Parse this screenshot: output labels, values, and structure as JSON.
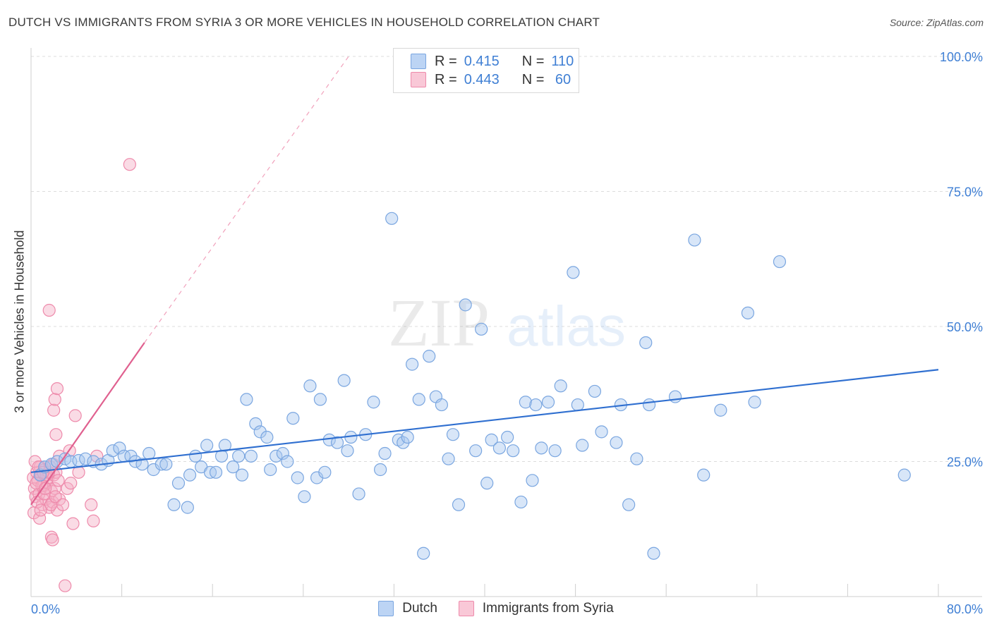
{
  "title": "DUTCH VS IMMIGRANTS FROM SYRIA 3 OR MORE VEHICLES IN HOUSEHOLD CORRELATION CHART",
  "source": "Source: ZipAtlas.com",
  "watermark": {
    "zip": "ZIP",
    "atlas": "atlas"
  },
  "legend": {
    "dutch": {
      "r_label": "R =",
      "r_value": "0.415",
      "n_label": "N =",
      "n_value": "110",
      "color": "#a9c7f0"
    },
    "syria": {
      "r_label": "R =",
      "r_value": "0.443",
      "n_label": "N =",
      "n_value": " 60",
      "color": "#f5b0c6"
    }
  },
  "bottom_legend": {
    "dutch": "Dutch",
    "syria": "Immigrants from Syria"
  },
  "chart_data": {
    "type": "scatter",
    "xlabel": "",
    "ylabel": "3 or more Vehicles in Household",
    "xlim": [
      0,
      80
    ],
    "ylim": [
      0,
      100
    ],
    "x_tick_labels": [
      "0.0%",
      "80.0%"
    ],
    "y_tick_labels": [
      "100.0%",
      "75.0%",
      "50.0%",
      "25.0%"
    ],
    "y_ticks": [
      100,
      75,
      50,
      25
    ],
    "colors": {
      "dutch_fill": "#a9c7f0",
      "dutch_stroke": "#7aa6e0",
      "dutch_line": "#2f6fd0",
      "syria_fill": "#f5b0c6",
      "syria_stroke": "#ee8aab",
      "syria_line": "#e0608f",
      "axis_text": "#3f7fd4"
    },
    "series": [
      {
        "name": "Dutch",
        "trend": {
          "x0": 0,
          "y0": 23.0,
          "x1": 80,
          "y1": 42.0
        },
        "points": [
          [
            0.8,
            22.5
          ],
          [
            1.2,
            24
          ],
          [
            1.8,
            24.5
          ],
          [
            2.3,
            25
          ],
          [
            3,
            25.5
          ],
          [
            3.5,
            25
          ],
          [
            4.2,
            25.2
          ],
          [
            4.8,
            25.5
          ],
          [
            5.5,
            25
          ],
          [
            6.2,
            24.5
          ],
          [
            6.8,
            25.2
          ],
          [
            7.2,
            27
          ],
          [
            7.8,
            27.5
          ],
          [
            8.2,
            26
          ],
          [
            8.8,
            26
          ],
          [
            9.2,
            25
          ],
          [
            9.8,
            24.5
          ],
          [
            10.4,
            26.5
          ],
          [
            10.8,
            23.5
          ],
          [
            11.5,
            24.5
          ],
          [
            11.9,
            24.5
          ],
          [
            12.6,
            17
          ],
          [
            13,
            21
          ],
          [
            13.8,
            16.5
          ],
          [
            14,
            22.5
          ],
          [
            14.5,
            26
          ],
          [
            15,
            24
          ],
          [
            15.5,
            28
          ],
          [
            15.8,
            23
          ],
          [
            16.3,
            23
          ],
          [
            16.8,
            26
          ],
          [
            17.1,
            28
          ],
          [
            17.8,
            24
          ],
          [
            18.3,
            26
          ],
          [
            18.6,
            22.5
          ],
          [
            19,
            36.5
          ],
          [
            19.8,
            32
          ],
          [
            20.2,
            30.5
          ],
          [
            20.8,
            29.5
          ],
          [
            21.1,
            23.5
          ],
          [
            21.6,
            26
          ],
          [
            22.2,
            26.5
          ],
          [
            22.6,
            25
          ],
          [
            23.1,
            33
          ],
          [
            23.5,
            22
          ],
          [
            24.1,
            18.5
          ],
          [
            24.6,
            39
          ],
          [
            25.2,
            22
          ],
          [
            25.5,
            36.5
          ],
          [
            25.9,
            23
          ],
          [
            26.3,
            29
          ],
          [
            27,
            28.5
          ],
          [
            27.6,
            40
          ],
          [
            28.2,
            29.5
          ],
          [
            28.9,
            19
          ],
          [
            29.5,
            30
          ],
          [
            30.2,
            36
          ],
          [
            30.8,
            23.5
          ],
          [
            31.2,
            26.5
          ],
          [
            31.8,
            70
          ],
          [
            32.4,
            29
          ],
          [
            32.8,
            28.5
          ],
          [
            33.2,
            29.5
          ],
          [
            33.6,
            43
          ],
          [
            34.2,
            36.5
          ],
          [
            34.6,
            8
          ],
          [
            35.1,
            44.5
          ],
          [
            35.7,
            37
          ],
          [
            36.2,
            35.5
          ],
          [
            36.8,
            25.5
          ],
          [
            37.2,
            30
          ],
          [
            37.7,
            17
          ],
          [
            38.3,
            54
          ],
          [
            39.2,
            27
          ],
          [
            39.7,
            49.5
          ],
          [
            40.2,
            21
          ],
          [
            40.6,
            29
          ],
          [
            41.3,
            27.5
          ],
          [
            42,
            29.5
          ],
          [
            42.5,
            27
          ],
          [
            43.2,
            17.5
          ],
          [
            43.6,
            36
          ],
          [
            44.5,
            35.5
          ],
          [
            45,
            27.5
          ],
          [
            45.6,
            36
          ],
          [
            46.2,
            27
          ],
          [
            46.7,
            39
          ],
          [
            47.8,
            60
          ],
          [
            48.2,
            35.5
          ],
          [
            48.6,
            28
          ],
          [
            49.7,
            38
          ],
          [
            50.3,
            30.5
          ],
          [
            51.6,
            28.5
          ],
          [
            52,
            35.5
          ],
          [
            52.7,
            17
          ],
          [
            53.4,
            25.5
          ],
          [
            54.2,
            47
          ],
          [
            54.5,
            35.5
          ],
          [
            54.9,
            8
          ],
          [
            56.8,
            37
          ],
          [
            58.5,
            66
          ],
          [
            59.3,
            22.5
          ],
          [
            60.8,
            34.5
          ],
          [
            63.2,
            52.5
          ],
          [
            63.8,
            36
          ],
          [
            66,
            62
          ],
          [
            77,
            22.5
          ],
          [
            19.4,
            26
          ],
          [
            27.9,
            27
          ],
          [
            44.2,
            21.5
          ]
        ]
      },
      {
        "name": "Immigrants from Syria",
        "trend": {
          "x0": 0,
          "y0": 17.0,
          "x1": 10,
          "y1": 47.0
        },
        "trend_extension": {
          "x0": 10,
          "y0": 47.0,
          "x1": 28,
          "y1": 100
        },
        "points": [
          [
            0.2,
            22
          ],
          [
            0.3,
            20
          ],
          [
            0.4,
            18.5
          ],
          [
            0.5,
            23
          ],
          [
            0.6,
            21.5
          ],
          [
            0.7,
            19
          ],
          [
            0.8,
            24
          ],
          [
            0.9,
            22.5
          ],
          [
            1.0,
            17
          ],
          [
            1.1,
            20.5
          ],
          [
            1.2,
            23.5
          ],
          [
            1.3,
            18
          ],
          [
            1.4,
            21
          ],
          [
            1.5,
            22
          ],
          [
            1.6,
            16.5
          ],
          [
            1.7,
            24
          ],
          [
            1.8,
            19.5
          ],
          [
            1.9,
            17.5
          ],
          [
            2.0,
            22.5
          ],
          [
            2.1,
            20
          ],
          [
            2.2,
            23
          ],
          [
            2.3,
            16
          ],
          [
            2.4,
            21.5
          ],
          [
            2.5,
            18
          ],
          [
            0.25,
            15.5
          ],
          [
            0.35,
            25
          ],
          [
            0.55,
            17.5
          ],
          [
            0.75,
            14.5
          ],
          [
            0.95,
            20.5
          ],
          [
            1.15,
            19
          ],
          [
            1.35,
            22.5
          ],
          [
            1.55,
            23
          ],
          [
            1.75,
            17
          ],
          [
            1.95,
            24.5
          ],
          [
            2.15,
            18.5
          ],
          [
            0.45,
            21
          ],
          [
            0.65,
            24
          ],
          [
            0.85,
            16
          ],
          [
            1.05,
            23
          ],
          [
            1.25,
            20
          ],
          [
            1.6,
            53
          ],
          [
            1.8,
            11
          ],
          [
            1.9,
            10.5
          ],
          [
            2.0,
            34.5
          ],
          [
            2.1,
            36.5
          ],
          [
            2.2,
            30
          ],
          [
            2.3,
            38.5
          ],
          [
            2.5,
            26
          ],
          [
            2.8,
            17
          ],
          [
            3.0,
            2
          ],
          [
            3.2,
            20
          ],
          [
            3.4,
            27
          ],
          [
            3.5,
            21
          ],
          [
            3.7,
            13.5
          ],
          [
            3.9,
            33.5
          ],
          [
            4.2,
            23
          ],
          [
            5.3,
            17
          ],
          [
            5.5,
            14
          ],
          [
            5.8,
            26
          ],
          [
            8.7,
            80
          ]
        ]
      }
    ]
  }
}
